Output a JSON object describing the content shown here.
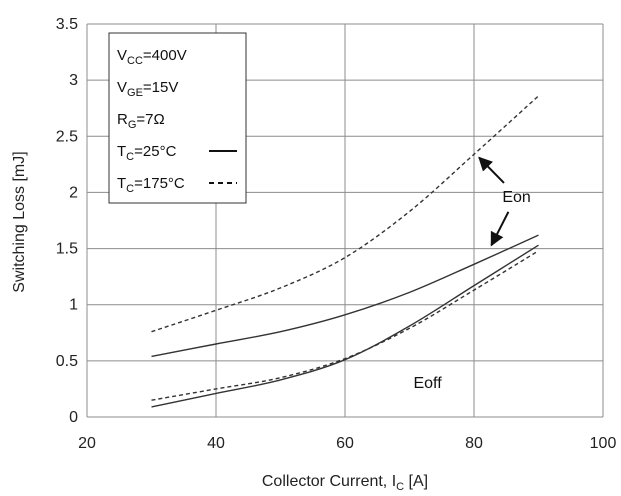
{
  "chart_data": {
    "type": "line",
    "xlabel": "Collector Current, I",
    "xlabel_sub": "C",
    "xlabel_unit": " [A]",
    "ylabel": "Switching Loss [mJ]",
    "xlim": [
      20,
      100
    ],
    "ylim": [
      0,
      3.5
    ],
    "xticks": [
      "20",
      "40",
      "60",
      "80",
      "100"
    ],
    "yticks": [
      "0",
      "0.5",
      "1",
      "1.5",
      "2",
      "2.5",
      "3",
      "3.5"
    ],
    "grid": true,
    "series": [
      {
        "style": "solid",
        "x": [
          30,
          40,
          50,
          60,
          70,
          80,
          90
        ],
        "y": [
          0.54,
          0.65,
          0.76,
          0.91,
          1.11,
          1.36,
          1.62
        ]
      },
      {
        "style": "dashed",
        "x": [
          30,
          40,
          50,
          60,
          70,
          80,
          90
        ],
        "y": [
          0.76,
          0.95,
          1.15,
          1.42,
          1.83,
          2.34,
          2.86
        ]
      },
      {
        "style": "solid",
        "x": [
          30,
          40,
          50,
          60,
          70,
          80,
          90
        ],
        "y": [
          0.09,
          0.21,
          0.33,
          0.51,
          0.81,
          1.17,
          1.53
        ]
      },
      {
        "style": "dashed",
        "x": [
          30,
          40,
          50,
          60,
          70,
          80,
          90
        ],
        "y": [
          0.15,
          0.25,
          0.35,
          0.52,
          0.79,
          1.13,
          1.48
        ]
      }
    ],
    "legend": {
      "placement": "top-left",
      "lines": [
        {
          "main": "V",
          "sub": "CC",
          "rest": "=400V"
        },
        {
          "main": "V",
          "sub": "GE",
          "rest": "=15V"
        },
        {
          "main": "R",
          "sub": "G",
          "rest": "=7Ω"
        },
        {
          "main": "T",
          "sub": "C",
          "rest": "=25°C",
          "line_style": "solid"
        },
        {
          "main": "T",
          "sub": "C",
          "rest": "=175°C",
          "line_style": "dashed"
        }
      ]
    },
    "annotations": [
      {
        "text": "Eon",
        "x": 86.6,
        "y": 1.97,
        "arrows": [
          [
            80.8,
            2.31
          ],
          [
            82.7,
            1.53
          ]
        ]
      },
      {
        "text": "Eoff",
        "x": 72.8,
        "y": 0.31,
        "arrows": []
      }
    ]
  }
}
